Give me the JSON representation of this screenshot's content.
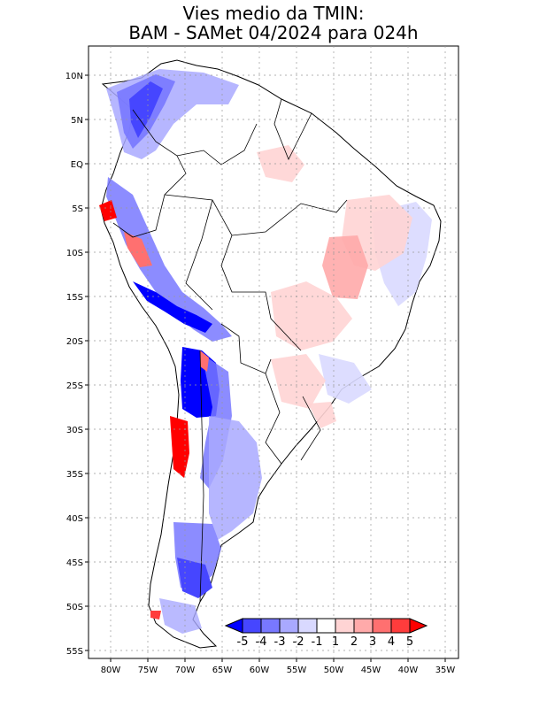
{
  "title_line1": "Vies medio da TMIN:",
  "title_line2": "BAM - SAMet 04/2024  para 024h",
  "lat_labels": [
    "10N",
    "5N",
    "EQ",
    "5S",
    "10S",
    "15S",
    "20S",
    "25S",
    "30S",
    "35S",
    "40S",
    "45S",
    "50S",
    "55S"
  ],
  "lon_labels": [
    "80W",
    "75W",
    "70W",
    "65W",
    "60W",
    "55W",
    "50W",
    "45W",
    "40W",
    "35W"
  ],
  "colorbar": {
    "labels": [
      "-5",
      "-4",
      "-3",
      "-2",
      "-1",
      "1",
      "2",
      "3",
      "4",
      "5"
    ],
    "colors": [
      "#0000ff",
      "#4646ff",
      "#7878ff",
      "#a9a9ff",
      "#d9d9ff",
      "#ffffff",
      "#ffd4d4",
      "#ffaaaa",
      "#ff7070",
      "#ff3c3c",
      "#ff0000"
    ]
  },
  "chart_data": {
    "type": "heatmap",
    "title": "Vies medio da TMIN: BAM - SAMet 04/2024  para 024h",
    "lat_range": [
      "55S",
      "10N"
    ],
    "lon_range": [
      "80W",
      "35W"
    ],
    "levels": [
      -5,
      -4,
      -3,
      -2,
      -1,
      1,
      2,
      3,
      4,
      5
    ]
  }
}
